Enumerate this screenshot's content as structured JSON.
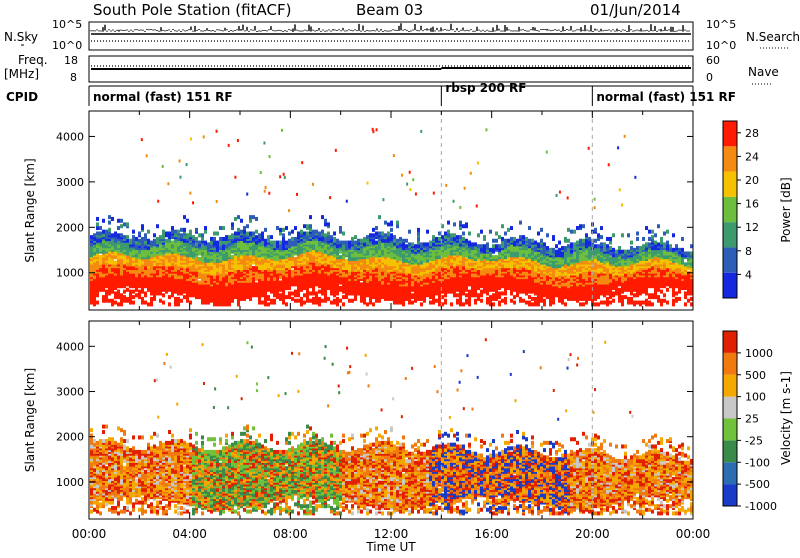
{
  "header": {
    "station": "South Pole Station (fitACF)",
    "beam": "Beam 03",
    "date": "01/Jun/2014"
  },
  "strips": {
    "nsky_label": "N.Sky",
    "nsearch_label": "N.Search",
    "nsky_ticks": [
      "10^5",
      "10^0"
    ],
    "nsearch_ticks": [
      "10^5",
      "10^0"
    ],
    "freq_label_1": "Freq.",
    "freq_label_2": "[MHz]",
    "freq_ticks": [
      "18",
      "8"
    ],
    "nave_label": "Nave",
    "nave_ticks": [
      "60",
      "0"
    ],
    "cpid_label": "CPID"
  },
  "cpid_segments": [
    {
      "label": "normal (fast) 151 RF",
      "start_hour": 0,
      "end_hour": 14
    },
    {
      "label": "rbsp 200 RF",
      "start_hour": 14,
      "end_hour": 20
    },
    {
      "label": "normal (fast) 151 RF",
      "start_hour": 20,
      "end_hour": 24
    }
  ],
  "chart_data": [
    {
      "type": "heatmap",
      "quantity": "Power",
      "ylabel": "Slant Range [km]",
      "xlabel": "Time UT",
      "x_ticks": [
        "00:00",
        "04:00",
        "08:00",
        "12:00",
        "16:00",
        "20:00",
        "00:00"
      ],
      "xlim_hours": [
        0,
        24
      ],
      "y_ticks": [
        "1000",
        "2000",
        "3000",
        "4000"
      ],
      "ylim_km": [
        180,
        4560
      ],
      "colorbar_label": "Power [dB]",
      "colorbar_ticks": [
        "4",
        "8",
        "12",
        "16",
        "20",
        "24",
        "28"
      ],
      "colorbar_range": [
        0,
        30
      ],
      "colors": [
        "#1428e0",
        "#2e5db8",
        "#3c9a6e",
        "#6cbe3c",
        "#f5c100",
        "#f48b10",
        "#ff1a00"
      ]
    },
    {
      "type": "heatmap",
      "quantity": "Velocity",
      "ylabel": "Slant Range [km]",
      "xlabel": "Time UT",
      "x_ticks": [
        "00:00",
        "04:00",
        "08:00",
        "12:00",
        "16:00",
        "20:00",
        "00:00"
      ],
      "xlim_hours": [
        0,
        24
      ],
      "y_ticks": [
        "1000",
        "2000",
        "3000",
        "4000"
      ],
      "ylim_km": [
        180,
        4560
      ],
      "colorbar_label": "Velocity [m s-1]",
      "colorbar_ticks": [
        "1000",
        "500",
        "100",
        "25",
        "-25",
        "-100",
        "-500",
        "-1000"
      ],
      "colors": [
        "#1a3bc8",
        "#2a6db0",
        "#3a8a4a",
        "#6fc23a",
        "#c8c8c8",
        "#f5a800",
        "#f07a10",
        "#e02000"
      ]
    }
  ],
  "axes": {
    "xlabel": "Time UT"
  }
}
